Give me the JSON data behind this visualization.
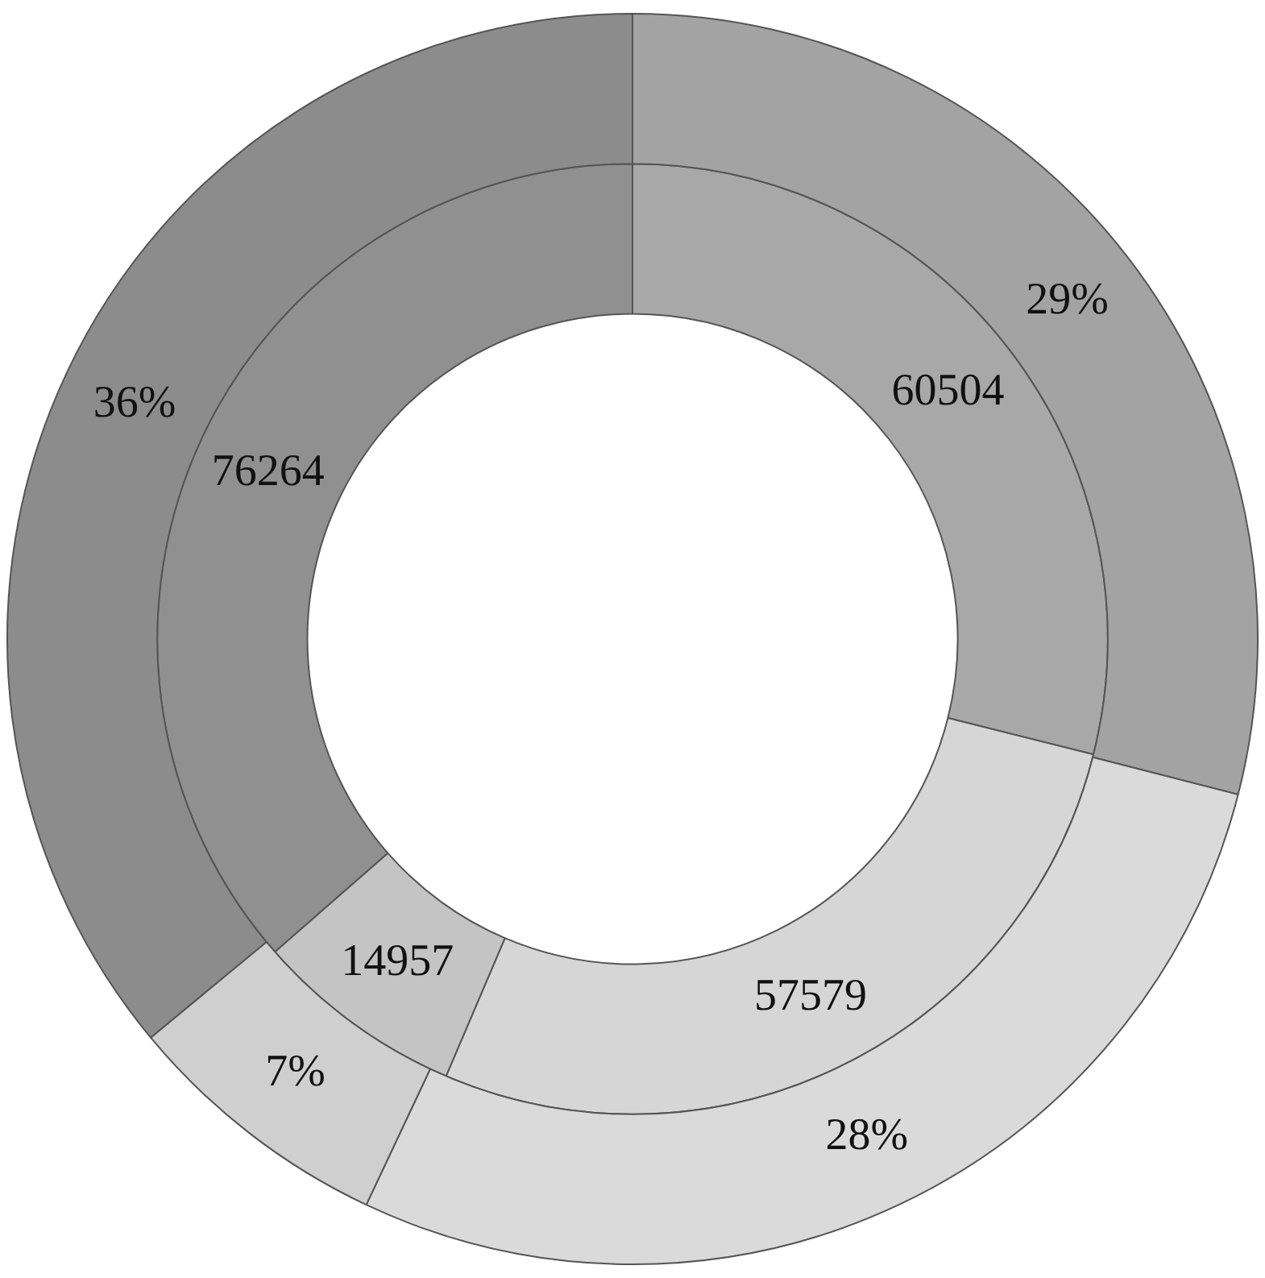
{
  "chart_data": {
    "type": "donut",
    "categories": [
      null,
      null,
      null,
      null
    ],
    "series": [
      {
        "values": [
          29,
          28,
          7,
          36
        ],
        "value_labels": [
          "29%",
          "28%",
          "7%",
          "36%"
        ],
        "colors": [
          "#a3a3a3",
          "#dadada",
          "#cfcfcf",
          "#8c8c8c"
        ]
      },
      {
        "values": [
          60504,
          57579,
          14957,
          76264
        ],
        "value_labels": [
          "60504",
          "57579",
          "14957",
          "76264"
        ],
        "colors": [
          "#a8a8a8",
          "#d6d6d6",
          "#c4c4c4",
          "#909090"
        ]
      }
    ],
    "legend": false
  }
}
